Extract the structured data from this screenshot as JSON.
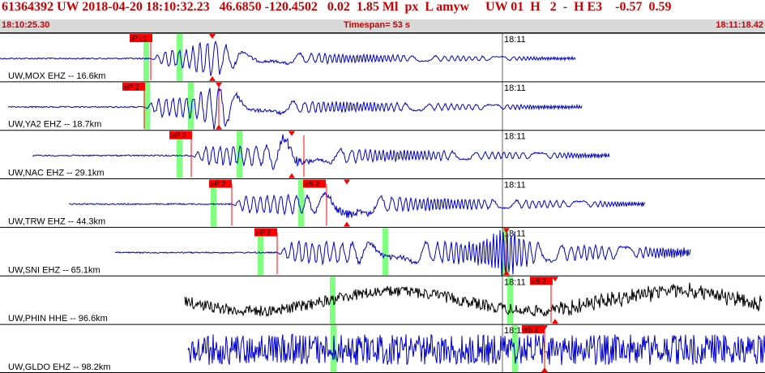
{
  "header": {
    "title": "61364392 UW 2018-04-20 18:10:32.23   46.6850 -120.4502   0.02  1.85 Ml  px  L amyw     UW 01  H   2  -  H E3    -0.57  0.59"
  },
  "timebar": {
    "start": "18:10:25.30",
    "span": "Timespan=  53 s",
    "end": "18:11:18.42"
  },
  "minute_label": "18:11",
  "colors": {
    "trace_blue": "#0000cc",
    "trace_black": "#000000",
    "pick_red": "#ff0000",
    "window_green": "#80ff80",
    "title_red": "#cc0000"
  },
  "channels": [
    {
      "label": "UW,MOX EHZ -- 16.6km",
      "color": "blue",
      "picks": [
        "iP c1"
      ],
      "amp": 0.7
    },
    {
      "label": "UW,YA2 EHZ -- 18.7km",
      "color": "blue",
      "picks": [
        "eP 2"
      ],
      "amp": 0.8
    },
    {
      "label": "UW,NAC EHZ -- 29.1km",
      "color": "blue",
      "picks": [
        "eP 2"
      ],
      "amp": 0.8
    },
    {
      "label": "UW,TRW EHZ -- 44.3km",
      "color": "blue",
      "picks": [
        "eP 2",
        "eS 2"
      ],
      "amp": 0.8
    },
    {
      "label": "UW,SNI EHZ -- 65.1km",
      "color": "blue",
      "picks": [
        "eP 2"
      ],
      "amp": 0.9
    },
    {
      "label": "UW,PHIN HHE -- 96.6km",
      "color": "black",
      "picks": [
        "eS 2"
      ],
      "amp": 0.7
    },
    {
      "label": "UW,GLDO EHZ -- 98.2km",
      "color": "blue",
      "picks": [
        "eS 2"
      ],
      "amp": 0.9
    }
  ]
}
